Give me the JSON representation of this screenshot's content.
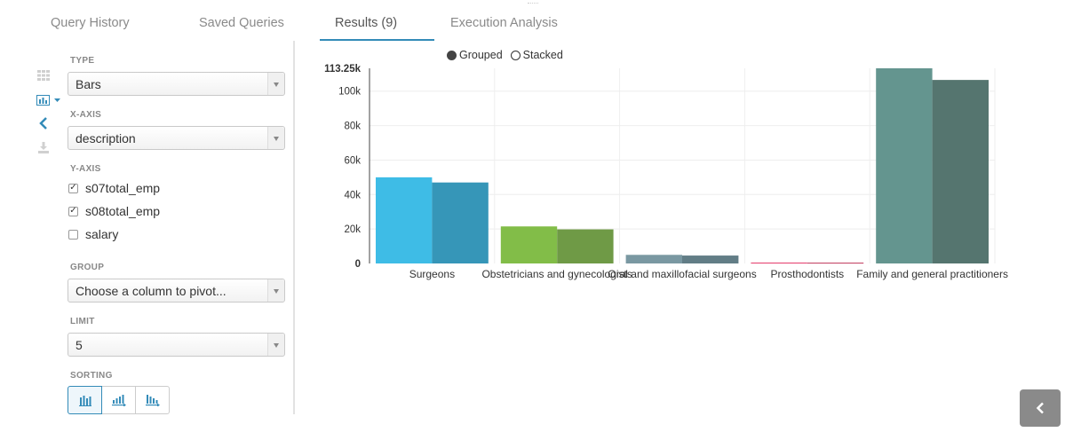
{
  "tabs": [
    {
      "label": "Query History"
    },
    {
      "label": "Saved Queries"
    },
    {
      "label": "Results (9)"
    },
    {
      "label": "Execution Analysis"
    }
  ],
  "settings": {
    "type_label": "TYPE",
    "type_value": "Bars",
    "xaxis_label": "X-AXIS",
    "xaxis_value": "description",
    "yaxis_label": "Y-AXIS",
    "yaxis_options": [
      {
        "label": "s07total_emp",
        "checked": true
      },
      {
        "label": "s08total_emp",
        "checked": true
      },
      {
        "label": "salary",
        "checked": false
      }
    ],
    "group_label": "GROUP",
    "group_placeholder": "Choose a column to pivot...",
    "limit_label": "LIMIT",
    "limit_value": "5",
    "sorting_label": "SORTING"
  },
  "sidebar_icons": [
    "grid-icon",
    "bar-chart-icon",
    "chevron-left-icon",
    "download-icon"
  ],
  "legend": {
    "grouped": "Grouped",
    "stacked": "Stacked",
    "selected": "grouped"
  },
  "chart_data": {
    "type": "bar",
    "mode": "grouped",
    "categories": [
      "Surgeons",
      "Obstetricians and gynecologists",
      "Oral and maxillofacial surgeons",
      "Prosthodontists",
      "Family and general practitioners"
    ],
    "series": [
      {
        "values": [
          50000,
          21500,
          5000,
          500,
          113250
        ]
      },
      {
        "values": [
          47000,
          19800,
          4600,
          450,
          106500
        ]
      }
    ],
    "bar_colors": [
      [
        "#3ebce6",
        "#3696b8"
      ],
      [
        "#82bd48",
        "#6f9a46"
      ],
      [
        "#7a98a2",
        "#627d86"
      ],
      [
        "#e6396a",
        "#bf3358"
      ],
      [
        "#64958f",
        "#55756f"
      ]
    ],
    "yticks": [
      0,
      20000,
      40000,
      60000,
      80000,
      100000
    ],
    "ytick_labels": [
      "0",
      "20k",
      "40k",
      "60k",
      "80k",
      "100k"
    ],
    "ymax_label": "113.25k",
    "ylim": [
      0,
      113250
    ],
    "grid": true
  },
  "colors": {
    "accent": "#338bb8",
    "collapse_button": "#8a8a8a"
  }
}
